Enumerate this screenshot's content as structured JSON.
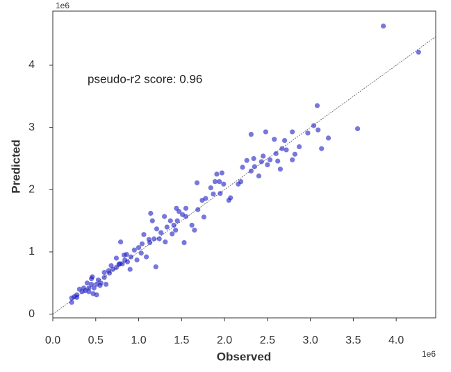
{
  "chart_data": {
    "type": "scatter",
    "annotation": "pseudo-r2 score: 0.96",
    "xlabel": "Observed",
    "ylabel": "Predicted",
    "x_offset_text": "1e6",
    "y_offset_text": "1e6",
    "color": "#1c1cc4",
    "xlim": [
      0,
      4.46
    ],
    "ylim": [
      -0.06,
      4.87
    ],
    "xticks": [
      {
        "value": 0,
        "label": "0.0"
      },
      {
        "value": 0.5,
        "label": "0.5"
      },
      {
        "value": 1,
        "label": "1.0"
      },
      {
        "value": 1.5,
        "label": "1.5"
      },
      {
        "value": 2,
        "label": "2.0"
      },
      {
        "value": 2.5,
        "label": "2.5"
      },
      {
        "value": 3,
        "label": "3.0"
      },
      {
        "value": 3.5,
        "label": "3.5"
      },
      {
        "value": 4,
        "label": "4.0"
      }
    ],
    "yticks": [
      0,
      1,
      2,
      3,
      4
    ],
    "x": [
      3.85,
      4.26,
      3.55,
      3.08,
      3.04,
      3.09,
      3.13,
      3.21,
      2.97,
      2.79,
      2.7,
      2.58,
      2.48,
      2.31,
      2.87,
      2.67,
      2.6,
      2.72,
      2.79,
      2.82,
      2.53,
      2.45,
      2.43,
      2.5,
      2.34,
      2.31,
      2.4,
      2.65,
      2.62,
      2.21,
      2.19,
      2.16,
      2.07,
      2.05,
      1.97,
      1.91,
      1.89,
      1.94,
      1.99,
      1.95,
      1.87,
      1.84,
      1.78,
      1.74,
      1.76,
      1.69,
      1.68,
      1.55,
      1.51,
      1.47,
      1.44,
      1.55,
      1.53,
      1.45,
      1.41,
      1.37,
      1.33,
      1.3,
      1.39,
      1.26,
      1.21,
      1.16,
      1.14,
      1.24,
      1.18,
      1.12,
      1.06,
      1.04,
      1.0,
      1.2,
      1.09,
      1.03,
      0.95,
      0.91,
      0.87,
      0.83,
      0.79,
      0.86,
      0.9,
      0.81,
      0.77,
      0.74,
      0.68,
      0.65,
      0.6,
      0.66,
      0.6,
      0.56,
      0.62,
      0.53,
      0.51,
      0.48,
      0.45,
      0.45,
      0.42,
      0.4,
      0.36,
      0.34,
      0.38,
      0.31,
      0.28,
      0.25,
      0.22,
      0.22,
      0.28,
      0.42,
      0.47,
      0.51,
      0.55,
      0.7,
      0.74,
      0.78,
      0.98,
      0.84,
      0.46,
      1.13,
      1.31,
      1.43,
      1.62,
      1.65,
      2.26,
      2.35
    ],
    "values": [
      4.63,
      4.21,
      2.98,
      3.35,
      3.03,
      2.96,
      2.66,
      2.83,
      2.91,
      2.93,
      2.79,
      2.81,
      2.93,
      2.89,
      2.69,
      2.66,
      2.58,
      2.64,
      2.48,
      2.57,
      2.48,
      2.54,
      2.45,
      2.4,
      2.5,
      2.3,
      2.22,
      2.33,
      2.46,
      2.36,
      2.13,
      2.09,
      1.87,
      1.83,
      2.27,
      2.25,
      2.13,
      2.13,
      2.09,
      1.94,
      1.93,
      2.03,
      1.86,
      1.83,
      1.56,
      1.68,
      2.11,
      1.57,
      1.6,
      1.65,
      1.7,
      1.7,
      1.15,
      1.5,
      1.43,
      1.5,
      1.4,
      1.57,
      1.29,
      1.31,
      1.37,
      1.5,
      1.62,
      1.21,
      1.21,
      1.2,
      1.28,
      1.13,
      1.07,
      0.76,
      0.92,
      0.98,
      1.03,
      0.92,
      0.84,
      0.95,
      1.16,
      0.96,
      0.72,
      0.81,
      0.8,
      0.9,
      0.78,
      0.7,
      0.67,
      0.66,
      0.59,
      0.5,
      0.48,
      0.55,
      0.48,
      0.42,
      0.57,
      0.48,
      0.42,
      0.5,
      0.42,
      0.36,
      0.38,
      0.4,
      0.31,
      0.28,
      0.26,
      0.19,
      0.27,
      0.36,
      0.33,
      0.31,
      0.46,
      0.72,
      0.75,
      0.81,
      0.87,
      0.87,
      0.6,
      1.15,
      1.16,
      1.35,
      1.43,
      1.35,
      2.47,
      2.37
    ]
  }
}
